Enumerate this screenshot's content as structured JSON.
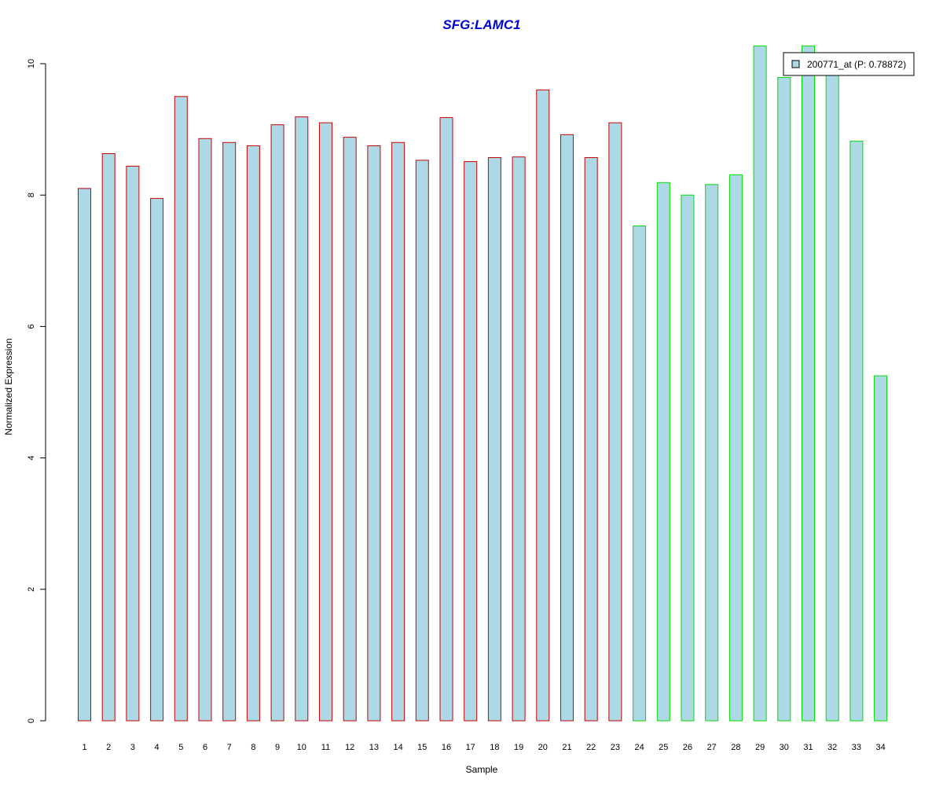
{
  "colors": {
    "title": "#0000cc",
    "bar_fill": "#add8e6",
    "group1_border": "#cc0000",
    "group2_border": "#00dd00",
    "axis": "#000000"
  },
  "chart_data": {
    "type": "bar",
    "title": "SFG:LAMC1",
    "xlabel": "Sample",
    "ylabel": "Normalized Expression",
    "ylim": [
      0,
      10.3
    ],
    "yticks": [
      0,
      2,
      4,
      6,
      8,
      10
    ],
    "grid": false,
    "legend": {
      "position": "top-right",
      "entries": [
        "200771_at (P: 0.78872)"
      ]
    },
    "categories": [
      "1",
      "2",
      "3",
      "4",
      "5",
      "6",
      "7",
      "8",
      "9",
      "10",
      "11",
      "12",
      "13",
      "14",
      "15",
      "16",
      "17",
      "18",
      "19",
      "20",
      "21",
      "22",
      "23",
      "24",
      "25",
      "26",
      "27",
      "28",
      "29",
      "30",
      "31",
      "32",
      "33",
      "34"
    ],
    "series": [
      {
        "name": "200771_at (P: 0.78872)",
        "values": [
          8.1,
          8.63,
          8.44,
          7.95,
          9.5,
          8.86,
          8.8,
          8.75,
          9.07,
          9.19,
          9.1,
          8.88,
          8.75,
          8.8,
          8.53,
          9.18,
          8.51,
          8.57,
          8.58,
          9.6,
          8.92,
          8.57,
          9.1,
          7.53,
          8.19,
          8.0,
          8.16,
          8.31,
          10.27,
          9.79,
          10.27,
          9.83,
          8.82,
          5.25
        ],
        "groups": [
          1,
          1,
          1,
          1,
          1,
          1,
          1,
          1,
          1,
          1,
          1,
          1,
          1,
          1,
          1,
          1,
          1,
          1,
          1,
          1,
          1,
          1,
          1,
          2,
          2,
          2,
          2,
          2,
          2,
          2,
          2,
          2,
          2,
          2
        ]
      }
    ]
  }
}
